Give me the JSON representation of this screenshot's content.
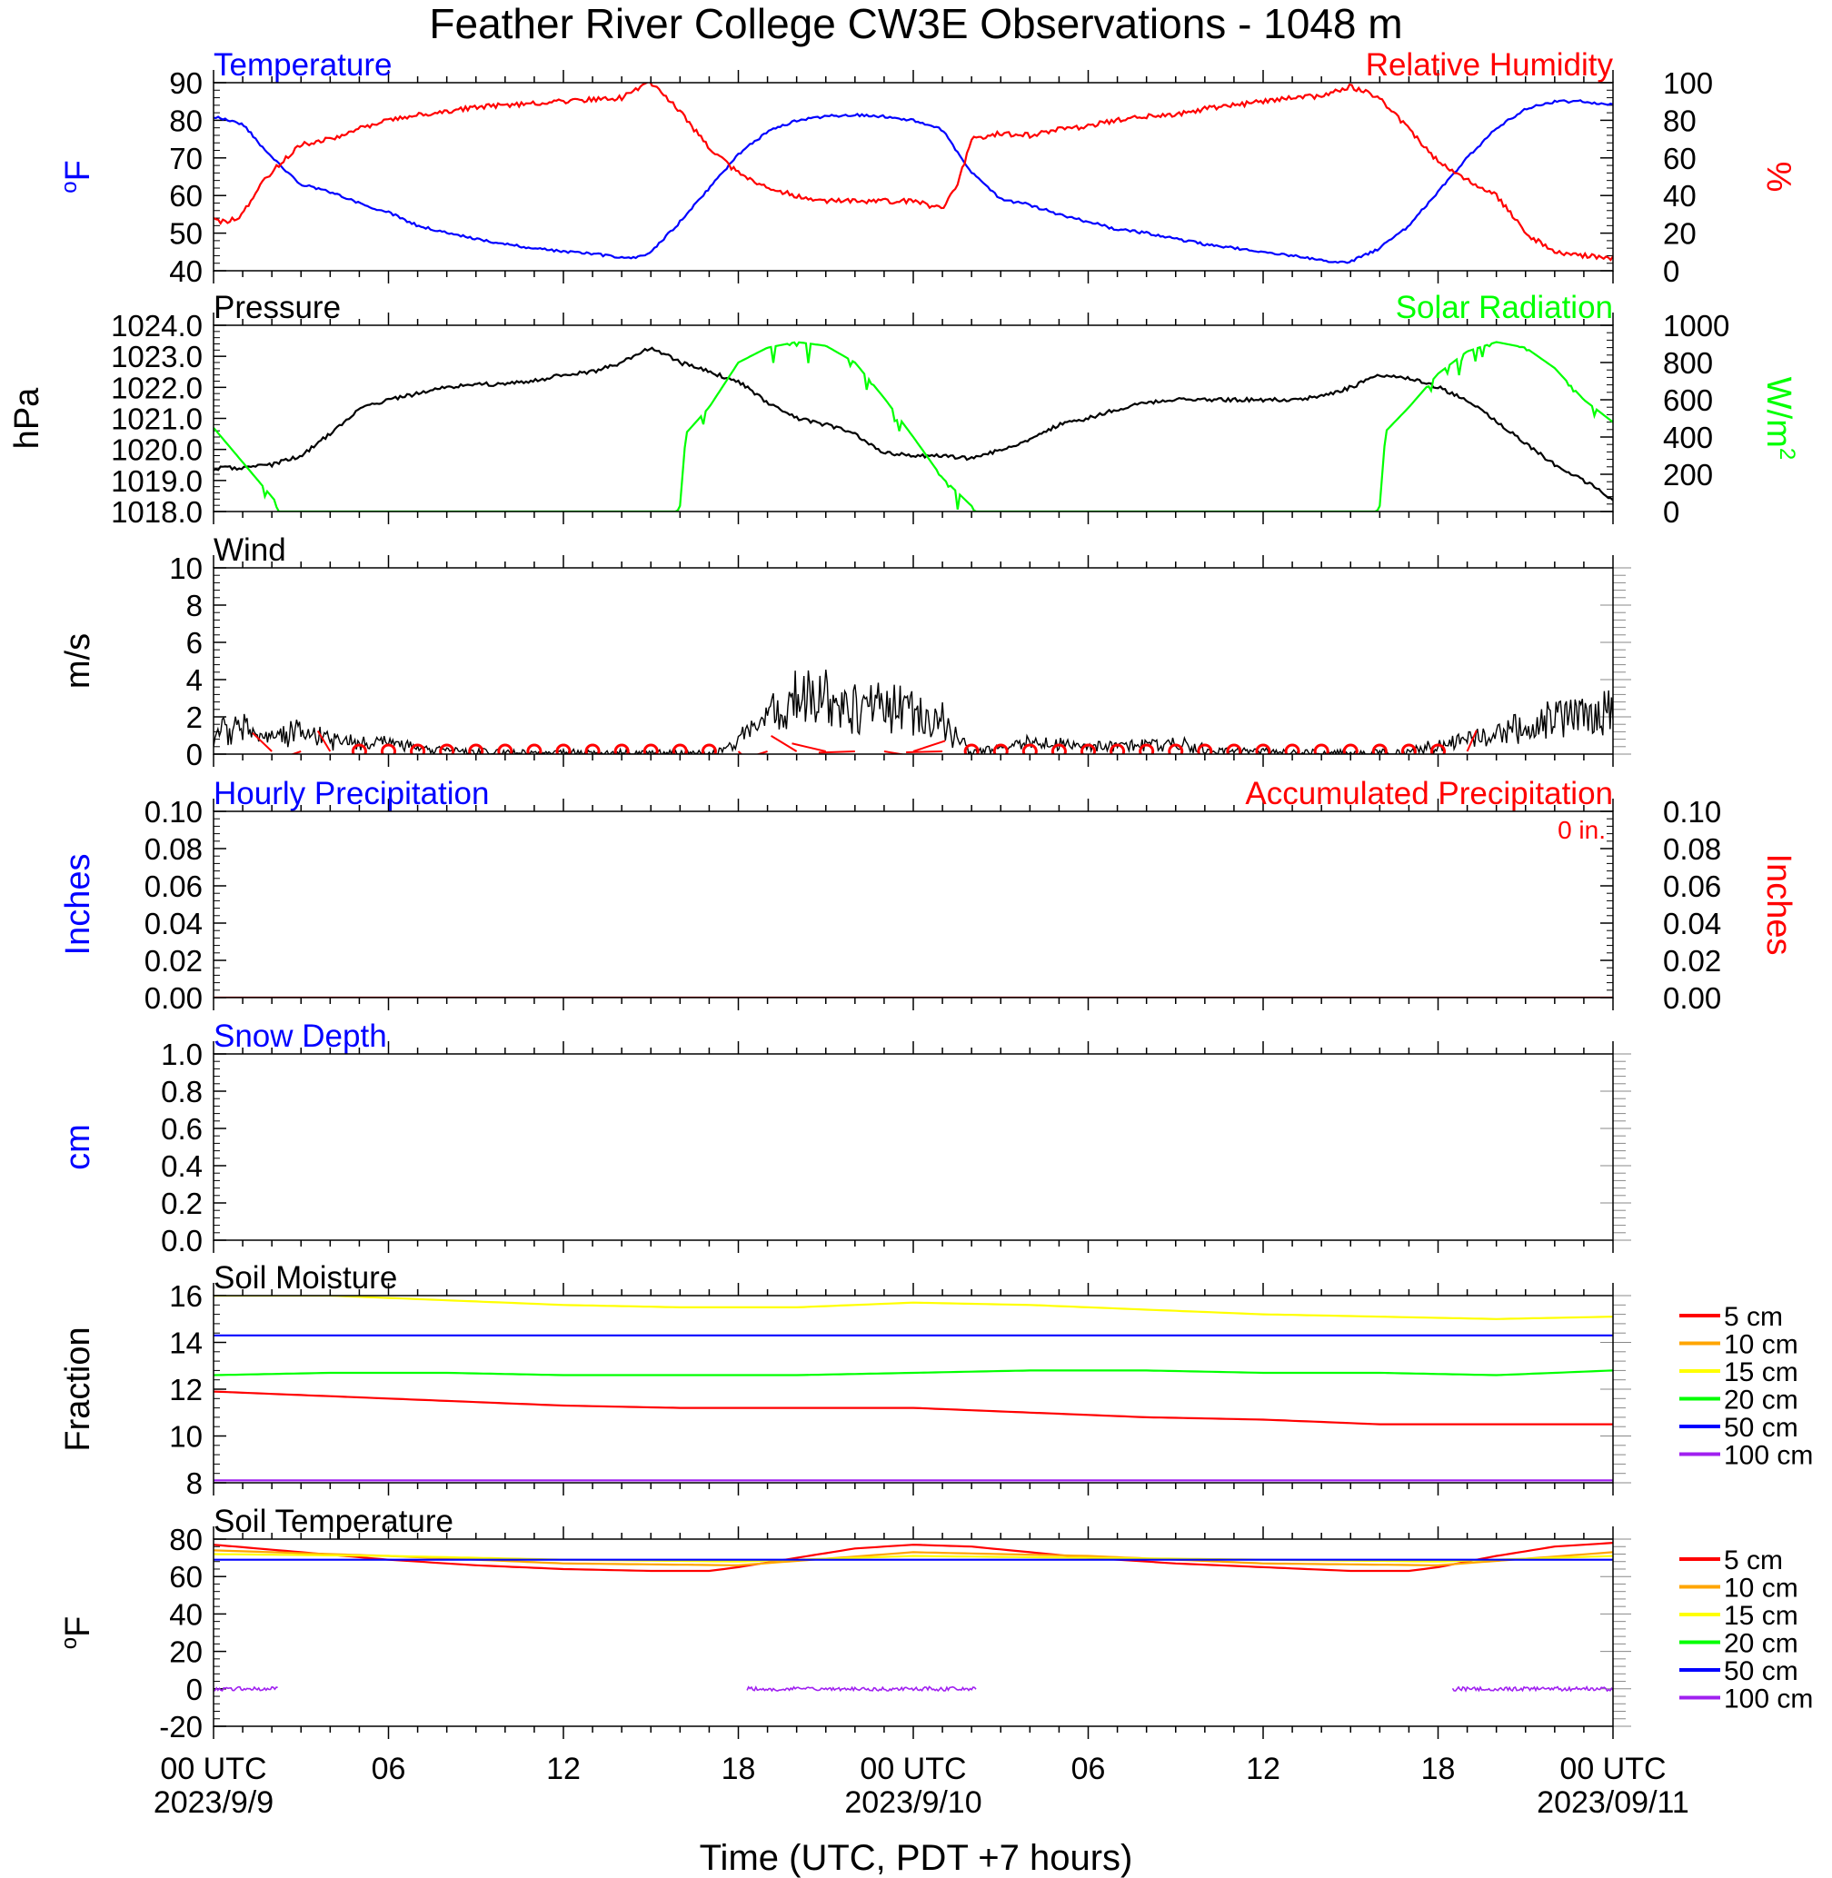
{
  "figure": {
    "title": "Feather River College CW3E Observations - 1048 m",
    "xlabel": "Time (UTC, PDT +7 hours)",
    "x_ticks": [
      {
        "hour": 0,
        "label": "00 UTC",
        "date": "2023/9/9"
      },
      {
        "hour": 6,
        "label": "06",
        "date": ""
      },
      {
        "hour": 12,
        "label": "12",
        "date": ""
      },
      {
        "hour": 18,
        "label": "18",
        "date": ""
      },
      {
        "hour": 24,
        "label": "00 UTC",
        "date": "2023/9/10"
      },
      {
        "hour": 30,
        "label": "06",
        "date": ""
      },
      {
        "hour": 36,
        "label": "12",
        "date": ""
      },
      {
        "hour": 42,
        "label": "18",
        "date": ""
      },
      {
        "hour": 48,
        "label": "00 UTC",
        "date": "2023/09/11"
      }
    ]
  },
  "chart_data": [
    {
      "id": "temp_rh",
      "type": "line",
      "title_left": "Temperature",
      "title_right": "Relative Humidity",
      "ylabel_left": "oF",
      "ylabel_right": "%",
      "ylim_left": [
        40,
        90
      ],
      "ylim_right": [
        0,
        100
      ],
      "yticks_left": [
        "40",
        "50",
        "60",
        "70",
        "80",
        "90"
      ],
      "yticks_right": [
        "0",
        "20",
        "40",
        "60",
        "80",
        "100"
      ],
      "colors": {
        "left": "#0000ff",
        "right": "#ff0000"
      },
      "series": [
        {
          "name": "Temperature",
          "axis": "left",
          "color": "#0000ff",
          "x": [
            0,
            1,
            2,
            3,
            4,
            5,
            6,
            7,
            8,
            9,
            10,
            11,
            12,
            13,
            14,
            14.5,
            15,
            16,
            17,
            18,
            19,
            20,
            21,
            22,
            23,
            24,
            25,
            26,
            27,
            28,
            29,
            30,
            31,
            32,
            33,
            34,
            35,
            36,
            37,
            38,
            38.5,
            39,
            40,
            41,
            42,
            43,
            44,
            45,
            46,
            47,
            48
          ],
          "y": [
            81,
            79,
            70,
            63,
            61,
            58,
            55.5,
            52,
            50,
            48.5,
            47,
            46,
            45,
            44.5,
            43.5,
            43.5,
            45,
            53,
            62,
            71,
            77,
            80,
            81,
            81.5,
            81,
            80,
            77.5,
            66,
            59,
            57.5,
            55,
            53,
            51,
            50,
            48.5,
            47,
            46,
            45,
            44,
            43,
            42,
            42.5,
            46,
            52,
            61,
            70,
            78,
            83,
            85,
            85,
            84
          ]
        },
        {
          "name": "Relative Humidity",
          "axis": "right",
          "color": "#ff0000",
          "x": [
            0,
            0.5,
            1,
            1.5,
            2,
            3,
            4,
            5,
            6,
            7,
            8,
            9,
            10,
            11,
            12,
            13,
            14,
            15,
            16,
            17,
            18,
            19,
            20,
            21,
            22,
            23,
            24,
            25,
            25.5,
            26,
            27,
            28,
            29,
            30,
            31,
            32,
            33,
            34,
            35,
            36,
            37,
            38,
            39,
            40,
            41,
            42,
            43,
            44,
            45,
            46,
            47,
            48
          ],
          "y": [
            27,
            26,
            30,
            43,
            53,
            67,
            70,
            76,
            80,
            83,
            85,
            87,
            88,
            89,
            90,
            91,
            92,
            100,
            85,
            65,
            52,
            44,
            40,
            37,
            37,
            37,
            37,
            33,
            45,
            70,
            73,
            72,
            75,
            77,
            80,
            82,
            83,
            86,
            88,
            90,
            92,
            93,
            98,
            92,
            75,
            58,
            48,
            40,
            20,
            10,
            8,
            7
          ]
        }
      ]
    },
    {
      "id": "pressure_solar",
      "type": "line",
      "title_left": "Pressure",
      "title_right": "Solar Radiation",
      "ylabel_left": "hPa",
      "ylabel_right": "W/m2",
      "ylim_left": [
        1018,
        1024
      ],
      "ylim_right": [
        0,
        1000
      ],
      "yticks_left": [
        "1018.0",
        "1019.0",
        "1020.0",
        "1021.0",
        "1022.0",
        "1023.0",
        "1024.0"
      ],
      "yticks_right": [
        "0",
        "200",
        "400",
        "600",
        "800",
        "1000"
      ],
      "colors": {
        "left": "#000000",
        "right": "#00ff00"
      },
      "series": [
        {
          "name": "Pressure",
          "axis": "left",
          "color": "#000000",
          "x": [
            0,
            1,
            2,
            3,
            4,
            5,
            6,
            7,
            8,
            9,
            10,
            11,
            12,
            13,
            14,
            15,
            16,
            17,
            18,
            19,
            20,
            21,
            22,
            23,
            24,
            25,
            26,
            27,
            28,
            29,
            30,
            31,
            32,
            33,
            34,
            35,
            36,
            37,
            38,
            39,
            40,
            41,
            42,
            43,
            44,
            45,
            46,
            47,
            48
          ],
          "y": [
            1019.4,
            1019.4,
            1019.5,
            1019.8,
            1020.5,
            1021.3,
            1021.6,
            1021.8,
            1022.0,
            1022.1,
            1022.1,
            1022.2,
            1022.4,
            1022.5,
            1022.8,
            1023.3,
            1022.8,
            1022.5,
            1022.2,
            1021.5,
            1021.0,
            1020.8,
            1020.5,
            1019.9,
            1019.8,
            1019.8,
            1019.7,
            1020.0,
            1020.3,
            1020.8,
            1021.0,
            1021.3,
            1021.5,
            1021.6,
            1021.6,
            1021.6,
            1021.6,
            1021.6,
            1021.7,
            1022.0,
            1022.4,
            1022.3,
            1022.0,
            1021.6,
            1020.9,
            1020.2,
            1019.5,
            1019.0,
            1018.4
          ]
        },
        {
          "name": "Solar Radiation",
          "axis": "right",
          "color": "#00ff00",
          "x": [
            0,
            2.1,
            2.2,
            15.9,
            16.0,
            16.2,
            17,
            18,
            19,
            20,
            21,
            22,
            23,
            24,
            25,
            26,
            26.1,
            39.9,
            40.0,
            40.2,
            41,
            42,
            43,
            44,
            45,
            46,
            47,
            48
          ],
          "y": [
            450,
            60,
            0,
            0,
            30,
            420,
            560,
            800,
            880,
            910,
            890,
            800,
            610,
            400,
            180,
            30,
            0,
            0,
            30,
            430,
            560,
            740,
            860,
            910,
            880,
            770,
            600,
            480
          ]
        }
      ]
    },
    {
      "id": "wind",
      "type": "line",
      "title_left": "Wind",
      "ylabel_left": "m/s",
      "ylim_left": [
        0,
        10
      ],
      "yticks_left": [
        "0",
        "2",
        "4",
        "6",
        "8",
        "10"
      ],
      "series": [
        {
          "name": "Wind",
          "axis": "left",
          "color": "#000000",
          "x": [
            0,
            1,
            1.5,
            2,
            3,
            4,
            5,
            6,
            7,
            8,
            9,
            10,
            11,
            12,
            13,
            14,
            15,
            16,
            17,
            17.5,
            18,
            19,
            20,
            21,
            22,
            23,
            24,
            25,
            25.5,
            26,
            27,
            28,
            29,
            30,
            31,
            32,
            33,
            34,
            35,
            36,
            37,
            38,
            39,
            40,
            41,
            42,
            43,
            44,
            45,
            46,
            47,
            48
          ],
          "y": [
            1.3,
            1.5,
            0.8,
            0.9,
            1.3,
            0.8,
            0.5,
            0.6,
            0.3,
            0.2,
            0.1,
            0.05,
            0.05,
            0.05,
            0.05,
            0.05,
            0.05,
            0.05,
            0.05,
            0.2,
            0.8,
            1.8,
            3.0,
            3.1,
            2.8,
            2.5,
            2.2,
            1.8,
            0.8,
            0.1,
            0.4,
            0.6,
            0.5,
            0.4,
            0.5,
            0.5,
            0.5,
            0.3,
            0.2,
            0.1,
            0.05,
            0.05,
            0.05,
            0.05,
            0.1,
            0.5,
            0.8,
            1.0,
            1.6,
            2.0,
            2.0,
            2.3
          ]
        }
      ]
    },
    {
      "id": "precip",
      "type": "line",
      "title_left": "Hourly Precipitation",
      "title_right": "Accumulated Precipitation",
      "annotation": "0 in.",
      "ylabel_left": "Inches",
      "ylabel_right": "Inches",
      "ylim_left": [
        0,
        0.1
      ],
      "ylim_right": [
        0,
        0.1
      ],
      "yticks_left": [
        "0.00",
        "0.02",
        "0.04",
        "0.06",
        "0.08",
        "0.10"
      ],
      "yticks_right": [
        "0.00",
        "0.02",
        "0.04",
        "0.06",
        "0.08",
        "0.10"
      ],
      "colors": {
        "left": "#0000ff",
        "right": "#ff0000"
      },
      "series": [
        {
          "name": "Accumulated Precipitation",
          "axis": "right",
          "color": "#cc0000",
          "x": [
            0,
            48
          ],
          "y": [
            0,
            0
          ]
        }
      ]
    },
    {
      "id": "snow",
      "type": "line",
      "title_left": "Snow Depth",
      "ylabel_left": "cm",
      "ylim_left": [
        0,
        1
      ],
      "yticks_left": [
        "0.0",
        "0.2",
        "0.4",
        "0.6",
        "0.8",
        "1.0"
      ],
      "colors": {
        "left": "#0000ff"
      },
      "series": []
    },
    {
      "id": "soil_moisture",
      "type": "line",
      "title_left": "Soil Moisture",
      "ylabel_left": "Fraction",
      "ylim_left": [
        8,
        16
      ],
      "yticks_left": [
        "8",
        "10",
        "12",
        "14",
        "16"
      ],
      "legend": [
        {
          "name": "5 cm",
          "color": "#ff0000"
        },
        {
          "name": "10 cm",
          "color": "#ffa500"
        },
        {
          "name": "15 cm",
          "color": "#ffff00"
        },
        {
          "name": "20 cm",
          "color": "#00ff00"
        },
        {
          "name": "50 cm",
          "color": "#0000ff"
        },
        {
          "name": "100 cm",
          "color": "#a020f0"
        }
      ],
      "series": [
        {
          "name": "15 cm",
          "color": "#ffff00",
          "x": [
            0,
            4,
            8,
            12,
            16,
            20,
            24,
            28,
            32,
            36,
            40,
            44,
            48
          ],
          "y": [
            16.0,
            16.0,
            15.8,
            15.6,
            15.5,
            15.5,
            15.7,
            15.6,
            15.4,
            15.2,
            15.1,
            15.0,
            15.1
          ]
        },
        {
          "name": "50 cm",
          "color": "#0000ff",
          "x": [
            0,
            48
          ],
          "y": [
            14.3,
            14.3
          ]
        },
        {
          "name": "20 cm",
          "color": "#00ff00",
          "x": [
            0,
            4,
            8,
            12,
            16,
            20,
            24,
            28,
            32,
            36,
            40,
            44,
            48
          ],
          "y": [
            12.6,
            12.7,
            12.7,
            12.6,
            12.6,
            12.6,
            12.7,
            12.8,
            12.8,
            12.7,
            12.7,
            12.6,
            12.8
          ]
        },
        {
          "name": "5 cm",
          "color": "#ff0000",
          "x": [
            0,
            4,
            8,
            12,
            16,
            20,
            24,
            28,
            32,
            36,
            40,
            44,
            48
          ],
          "y": [
            11.9,
            11.7,
            11.5,
            11.3,
            11.2,
            11.2,
            11.2,
            11.0,
            10.8,
            10.7,
            10.5,
            10.5,
            10.5
          ]
        },
        {
          "name": "100 cm",
          "color": "#a020f0",
          "x": [
            0,
            48
          ],
          "y": [
            8.1,
            8.1
          ]
        }
      ]
    },
    {
      "id": "soil_temp",
      "type": "line",
      "title_left": "Soil Temperature",
      "ylabel_left": "oF",
      "ylim_left": [
        -20,
        80
      ],
      "yticks_left": [
        "-20",
        "0",
        "20",
        "40",
        "60",
        "80"
      ],
      "legend": [
        {
          "name": "5 cm",
          "color": "#ff0000"
        },
        {
          "name": "10 cm",
          "color": "#ffa500"
        },
        {
          "name": "15 cm",
          "color": "#ffff00"
        },
        {
          "name": "20 cm",
          "color": "#00ff00"
        },
        {
          "name": "50 cm",
          "color": "#0000ff"
        },
        {
          "name": "100 cm",
          "color": "#a020f0"
        }
      ],
      "series": [
        {
          "name": "5 cm",
          "color": "#ff0000",
          "x": [
            0,
            3,
            6,
            9,
            12,
            15,
            17,
            18,
            20,
            22,
            24,
            26,
            28,
            30,
            33,
            36,
            39,
            41,
            42,
            44,
            46,
            48
          ],
          "y": [
            77,
            73,
            69,
            66,
            64,
            63,
            63,
            65,
            70,
            75,
            77,
            76,
            73,
            70,
            67,
            65,
            63,
            63,
            65,
            71,
            76,
            78
          ]
        },
        {
          "name": "10 cm",
          "color": "#ffa500",
          "x": [
            0,
            6,
            12,
            18,
            24,
            30,
            36,
            42,
            48
          ],
          "y": [
            74,
            71,
            67,
            66,
            73,
            71,
            67,
            66,
            73
          ]
        },
        {
          "name": "15 cm",
          "color": "#ffff00",
          "x": [
            0,
            6,
            12,
            18,
            24,
            30,
            36,
            42,
            48
          ],
          "y": [
            72,
            71,
            69,
            68,
            71,
            70,
            69,
            68,
            71
          ]
        },
        {
          "name": "50 cm",
          "color": "#0000ff",
          "x": [
            0,
            48
          ],
          "y": [
            69,
            69
          ]
        },
        {
          "name": "100 cm",
          "color": "#a020f0",
          "segments": [
            [
              0,
              2.2
            ],
            [
              18.3,
              26.2
            ],
            [
              42.5,
              48
            ]
          ],
          "value": 0
        }
      ]
    }
  ]
}
